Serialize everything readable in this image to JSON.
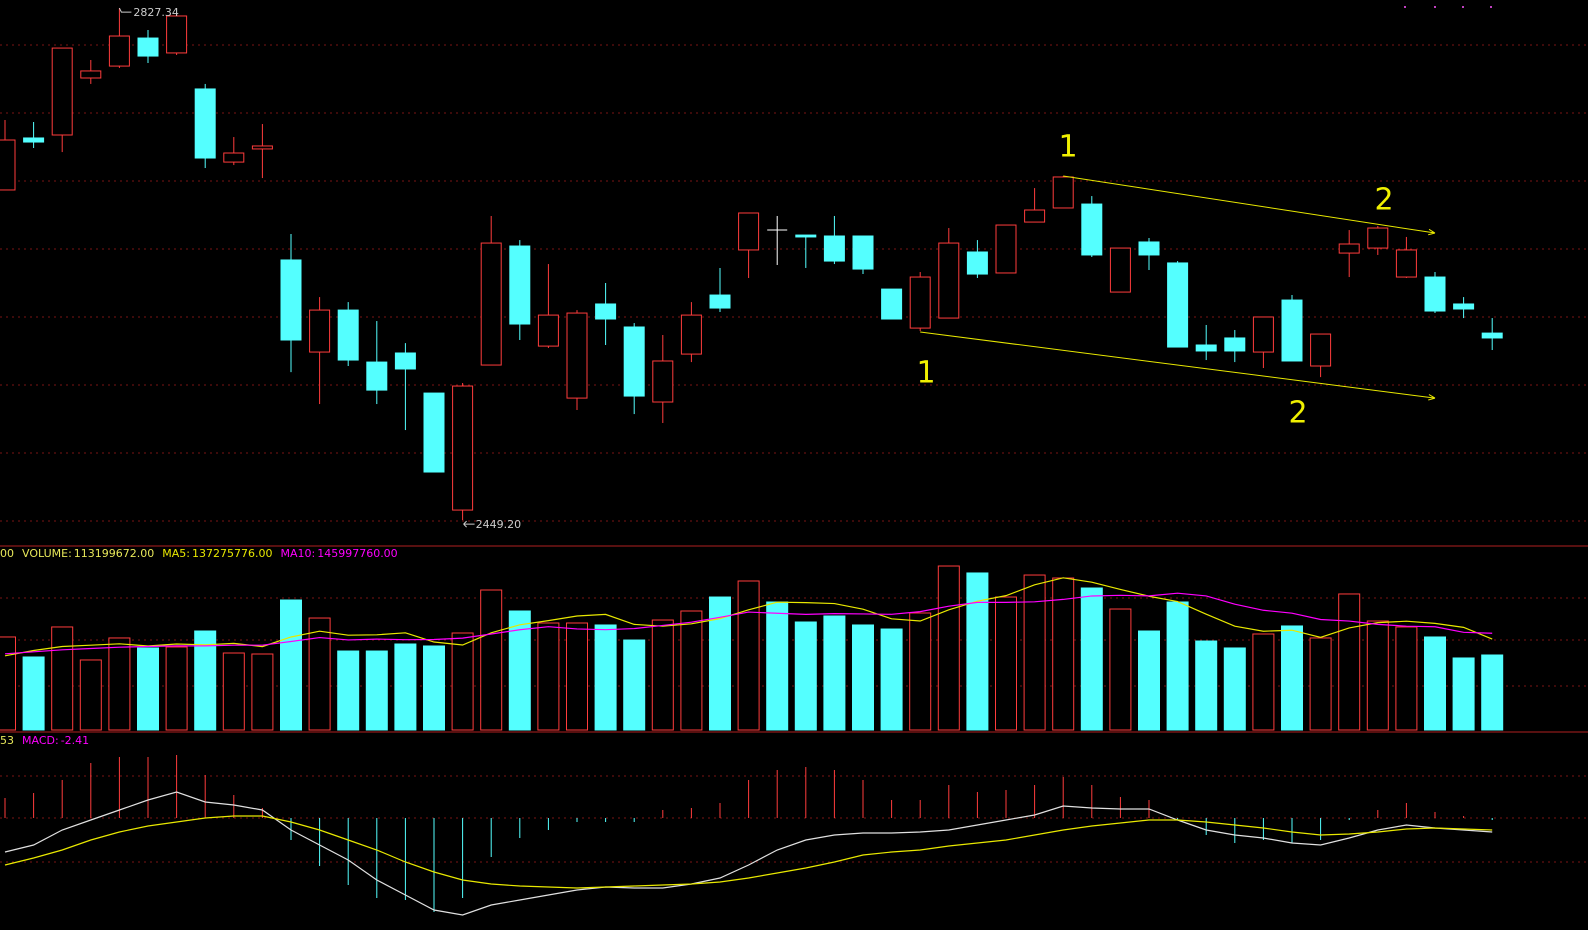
{
  "chart_data": [
    {
      "type": "candlestick",
      "up_color": "#ff3c3c",
      "down_color": "#54ffff",
      "flat_color": "#ffffff",
      "ylim": [
        2430.8,
        2833.3
      ],
      "open": [
        2693.0,
        2731.4,
        2733.6,
        2775.7,
        2784.5,
        2805.2,
        2794.2,
        2767.6,
        2713.6,
        2723.3,
        2641.3,
        2573.3,
        2604.3,
        2565.9,
        2572.6,
        2543.0,
        2456.6,
        2563.7,
        2651.6,
        2577.7,
        2539.3,
        2608.8,
        2591.8,
        2536.4,
        2571.8,
        2615.4,
        2648.7,
        2663.4,
        2659.7,
        2659.0,
        2659.0,
        2619.8,
        2591.0,
        2598.4,
        2647.2,
        2631.7,
        2669.3,
        2679.7,
        2682.6,
        2617.6,
        2654.6,
        2639.1,
        2578.5,
        2583.7,
        2573.3,
        2611.7,
        2563.0,
        2646.4,
        2650.1,
        2628.7,
        2628.7,
        2608.8,
        2587.3
      ],
      "high": [
        2744.7,
        2743.2,
        2797.8,
        2789.0,
        2827.34,
        2811.1,
        2823.0,
        2771.3,
        2732.1,
        2741.7,
        2660.5,
        2613.9,
        2610.2,
        2596.2,
        2579.9,
        2543.0,
        2550.4,
        2673.8,
        2656.0,
        2638.3,
        2604.3,
        2624.3,
        2594.7,
        2585.9,
        2610.2,
        2635.4,
        2676.0,
        2673.8,
        2659.7,
        2673.8,
        2659.0,
        2619.8,
        2632.4,
        2664.9,
        2656.0,
        2667.1,
        2694.4,
        2703.3,
        2688.5,
        2650.1,
        2657.5,
        2640.5,
        2593.3,
        2589.6,
        2599.2,
        2615.4,
        2586.6,
        2663.4,
        2666.4,
        2658.3,
        2632.4,
        2613.9,
        2598.4
      ],
      "low": [
        2693.0,
        2724.0,
        2721.0,
        2771.3,
        2783.1,
        2786.8,
        2792.7,
        2709.2,
        2711.4,
        2701.8,
        2558.5,
        2534.9,
        2563.0,
        2534.9,
        2515.7,
        2484.7,
        2449.2,
        2563.7,
        2582.2,
        2576.3,
        2530.5,
        2578.5,
        2527.5,
        2520.9,
        2565.9,
        2602.9,
        2628.0,
        2637.6,
        2635.4,
        2638.3,
        2630.9,
        2597.7,
        2588.8,
        2598.4,
        2628.0,
        2631.7,
        2669.3,
        2679.7,
        2643.5,
        2617.6,
        2633.9,
        2577.0,
        2567.4,
        2565.9,
        2561.5,
        2566.7,
        2554.8,
        2628.7,
        2645.0,
        2628.0,
        2602.1,
        2598.4,
        2574.8
      ],
      "close": [
        2729.9,
        2728.4,
        2797.8,
        2780.9,
        2806.7,
        2791.9,
        2821.5,
        2716.6,
        2720.3,
        2725.5,
        2582.2,
        2604.3,
        2567.4,
        2545.2,
        2560.8,
        2484.7,
        2548.2,
        2653.8,
        2594.0,
        2600.6,
        2602.1,
        2597.7,
        2540.8,
        2566.7,
        2600.6,
        2605.8,
        2676.0,
        2663.4,
        2658.3,
        2640.5,
        2634.6,
        2597.7,
        2628.7,
        2653.8,
        2630.9,
        2667.1,
        2678.2,
        2702.6,
        2645.0,
        2650.1,
        2645.0,
        2577.0,
        2574.1,
        2574.1,
        2599.2,
        2566.7,
        2586.6,
        2653.1,
        2664.9,
        2648.7,
        2603.6,
        2605.1,
        2583.7
      ],
      "max_label": "2827.34",
      "min_label": "2449.20",
      "trendlines": [
        {
          "x": [
            37,
            50
          ],
          "y": [
            2703.3,
            2661.2
          ],
          "color": "#e8e800"
        },
        {
          "x": [
            32,
            50
          ],
          "y": [
            2588.1,
            2539.3
          ],
          "color": "#e8e800"
        }
      ],
      "annotations": [
        "1",
        "2",
        "1",
        "2"
      ]
    },
    {
      "type": "bar",
      "ylim": [
        0,
        276200000
      ],
      "clipped_label": "00",
      "series": [
        {
          "name": "VOLUME:",
          "type": "bar",
          "color": "#e8e85a",
          "last_label": "113199672.00",
          "values": [
            140400000,
            110200000,
            155500000,
            105700000,
            138900000,
            123800000,
            125300000,
            149400000,
            116200000,
            114700000,
            196200000,
            169000000,
            119200000,
            119200000,
            129800000,
            126800000,
            146400000,
            211300000,
            179600000,
            161500000,
            161500000,
            158500000,
            135800000,
            166000000,
            179600000,
            200700000,
            224900000,
            193200000,
            163000000,
            172100000,
            158500000,
            152400000,
            176600000,
            247500000,
            237000000,
            200700000,
            233900000,
            229400000,
            214300000,
            182600000,
            149400000,
            193200000,
            134300000,
            123800000,
            144900000,
            157000000,
            138900000,
            205300000,
            164500000,
            155500000,
            140400000,
            108700000,
            113199672
          ]
        },
        {
          "name": "MA5:",
          "type": "line",
          "color": "#e8e800",
          "last_label": "137275776.00",
          "values": [
            112000000,
            120000000,
            126000000,
            128000000,
            130100000,
            126800000,
            129800000,
            128600000,
            130700000,
            125900000,
            140400000,
            149100000,
            143100000,
            143700000,
            146700000,
            132800000,
            128300000,
            146700000,
            158800000,
            165100000,
            172100000,
            174500000,
            159400000,
            156700000,
            160300000,
            168100000,
            181400000,
            192900000,
            192300000,
            190800000,
            182300000,
            167800000,
            164500000,
            181400000,
            194400000,
            202800000,
            219100000,
            229700000,
            223100000,
            212200000,
            201900000,
            193800000,
            174800000,
            156700000,
            149100000,
            150600000,
            139800000,
            154000000,
            162100000,
            164200000,
            160900000,
            154900000,
            137275776
          ]
        },
        {
          "name": "MA10:",
          "type": "line",
          "color": "#ff00ff",
          "last_label": "145997760.00",
          "values": [
            115000000,
            118000000,
            121000000,
            123000000,
            125000000,
            126000000,
            127000000,
            127000000,
            128000000,
            128000000,
            133600000,
            139500000,
            135900000,
            137200000,
            136300000,
            136600000,
            138700000,
            144900000,
            151300000,
            155900000,
            152500000,
            151400000,
            153100000,
            157800000,
            162700000,
            170100000,
            178000000,
            176200000,
            174500000,
            175600000,
            175200000,
            174600000,
            178700000,
            186900000,
            192600000,
            192600000,
            193500000,
            197100000,
            202300000,
            203300000,
            202400000,
            206500000,
            202300000,
            189900000,
            180700000,
            176300000,
            166800000,
            164400000,
            159400000,
            156700000,
            155800000,
            147400000,
            145997760
          ]
        }
      ]
    },
    {
      "type": "bar",
      "ylim": [
        -120,
        99.6
      ],
      "clipped_label": "53",
      "series": [
        {
          "name": "MACD:",
          "type": "bar",
          "color": "#ff00ff",
          "last_label": "-2.41",
          "values": [
            24.0,
            30.0,
            45.6,
            66.0,
            73.2,
            73.2,
            75.6,
            51.6,
            27.6,
            12.0,
            -26.4,
            -57.6,
            -80.4,
            -96.0,
            -98.4,
            -112.8,
            -96.0,
            -46.8,
            -24.0,
            -14.4,
            -4.8,
            -4.8,
            -4.8,
            9.6,
            12.0,
            18.0,
            45.6,
            57.6,
            61.2,
            57.6,
            45.6,
            21.6,
            21.6,
            39.6,
            31.2,
            33.6,
            39.6,
            49.2,
            39.6,
            25.2,
            21.6,
            -2.4,
            -20.4,
            -30.0,
            -26.4,
            -30.0,
            -26.4,
            -2.4,
            9.6,
            18.0,
            7.2,
            2.4,
            -2.41
          ]
        },
        {
          "type": "line",
          "color": "#e0e0e0",
          "values": [
            -40.8,
            -32.4,
            -14.4,
            -2.4,
            9.6,
            21.6,
            31.2,
            19.2,
            15.6,
            9.6,
            -14.4,
            -32.4,
            -50.4,
            -74.4,
            -92.4,
            -110.4,
            -116.4,
            -104.4,
            -98.4,
            -92.4,
            -86.4,
            -82.8,
            -84.0,
            -84.0,
            -79.2,
            -72.0,
            -56.4,
            -38.4,
            -26.4,
            -20.4,
            -18.0,
            -18.0,
            -16.8,
            -14.4,
            -8.4,
            -2.4,
            3.6,
            14.4,
            12.0,
            10.8,
            10.8,
            -2.4,
            -14.4,
            -20.4,
            -24.0,
            -30.0,
            -32.4,
            -24.0,
            -14.4,
            -8.4,
            -12.0,
            -14.4,
            -16.8
          ]
        },
        {
          "type": "line",
          "color": "#e8e800",
          "values": [
            -56.4,
            -48.0,
            -38.4,
            -26.4,
            -16.8,
            -9.6,
            -4.8,
            0,
            2.4,
            2.4,
            -4.8,
            -14.4,
            -26.4,
            -38.4,
            -52.8,
            -64.8,
            -74.4,
            -79.2,
            -81.6,
            -82.8,
            -84.0,
            -82.8,
            -81.6,
            -80.4,
            -79.2,
            -76.8,
            -72.0,
            -66.0,
            -60.0,
            -52.8,
            -44.4,
            -40.8,
            -38.4,
            -33.6,
            -30.0,
            -26.4,
            -20.4,
            -14.4,
            -9.6,
            -6.0,
            -2.4,
            -2.4,
            -4.8,
            -8.4,
            -12.0,
            -16.8,
            -20.4,
            -19.2,
            -16.8,
            -13.2,
            -12.0,
            -13.2,
            -14.4
          ]
        }
      ]
    }
  ]
}
